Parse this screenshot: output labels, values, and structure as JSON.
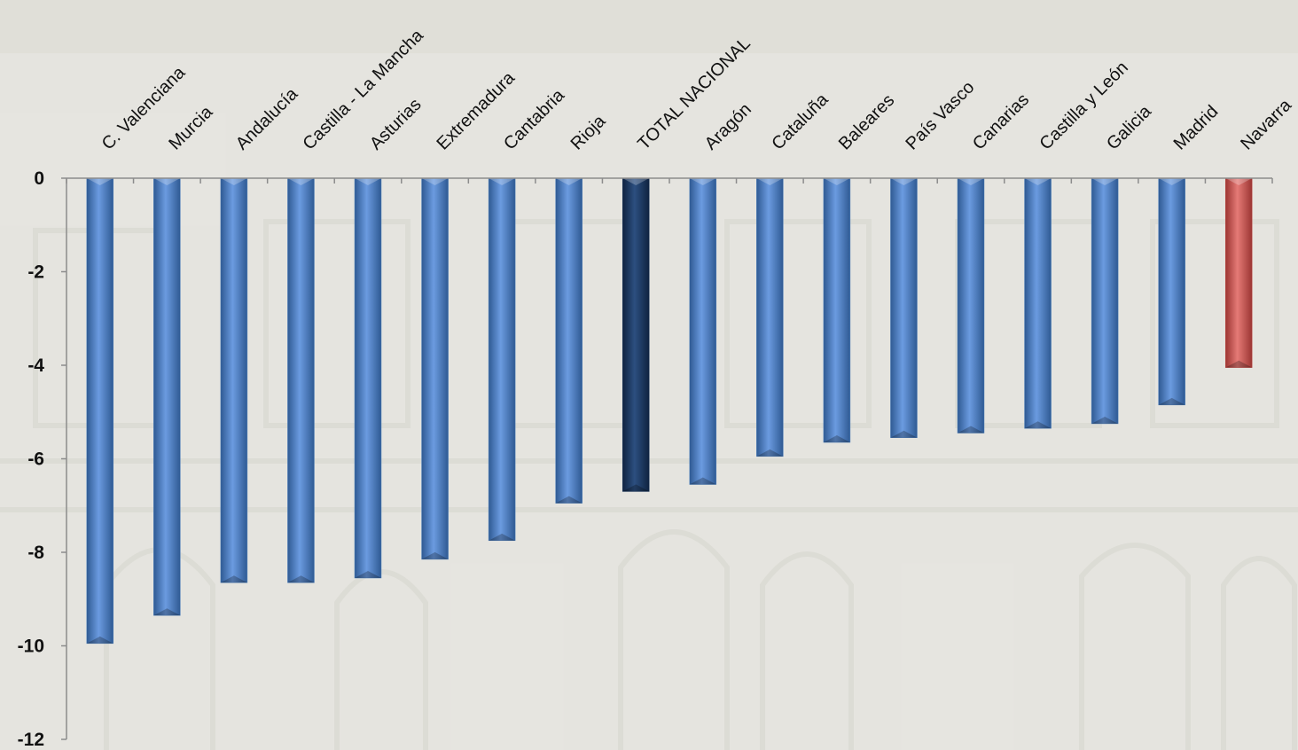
{
  "chart_data": {
    "type": "bar",
    "categories": [
      "C. Valenciana",
      "Murcia",
      "Andalucía",
      "Castilla - La Mancha",
      "Asturias",
      "Extremadura",
      "Cantabria",
      "Rioja",
      "TOTAL NACIONAL",
      "Aragón",
      "Cataluña",
      "Baleares",
      "País Vasco",
      "Canarias",
      "Castilla y León",
      "Galicia",
      "Madrid",
      "Navarra"
    ],
    "values": [
      -9.95,
      -9.35,
      -8.65,
      -8.65,
      -8.55,
      -8.15,
      -7.75,
      -6.95,
      -6.7,
      -6.55,
      -5.95,
      -5.65,
      -5.55,
      -5.45,
      -5.35,
      -5.25,
      -4.85,
      -4.05
    ],
    "ylim": [
      -12,
      0
    ],
    "yticks": [
      0,
      -2,
      -4,
      -6,
      -8,
      -10,
      -12
    ],
    "title": "",
    "xlabel": "",
    "ylabel": "",
    "x_axis_position": "top",
    "grid": false,
    "legend": "none",
    "colors": {
      "default": "#4f81bd",
      "highlight_total": "#1f3a60",
      "highlight_last": "#c0504d",
      "axis": "#8c8c8c"
    },
    "highlight": {
      "TOTAL NACIONAL": "highlight_total",
      "Navarra": "highlight_last"
    }
  }
}
